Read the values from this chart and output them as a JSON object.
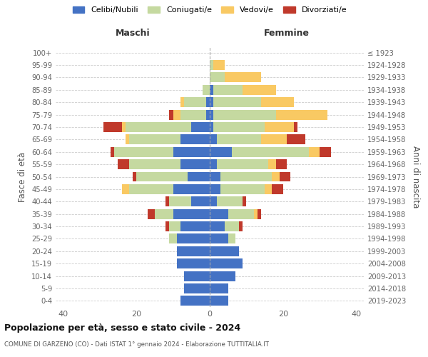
{
  "age_groups": [
    "0-4",
    "5-9",
    "10-14",
    "15-19",
    "20-24",
    "25-29",
    "30-34",
    "35-39",
    "40-44",
    "45-49",
    "50-54",
    "55-59",
    "60-64",
    "65-69",
    "70-74",
    "75-79",
    "80-84",
    "85-89",
    "90-94",
    "95-99",
    "100+"
  ],
  "birth_years": [
    "2019-2023",
    "2014-2018",
    "2009-2013",
    "2004-2008",
    "1999-2003",
    "1994-1998",
    "1989-1993",
    "1984-1988",
    "1979-1983",
    "1974-1978",
    "1969-1973",
    "1964-1968",
    "1959-1963",
    "1954-1958",
    "1949-1953",
    "1944-1948",
    "1939-1943",
    "1934-1938",
    "1929-1933",
    "1924-1928",
    "≤ 1923"
  ],
  "colors": {
    "celibe": "#4472c4",
    "coniugato": "#c5d9a0",
    "vedovo": "#f9c963",
    "divorziato": "#c0392b"
  },
  "maschi": {
    "celibe": [
      8,
      7,
      7,
      9,
      9,
      9,
      8,
      10,
      5,
      10,
      6,
      8,
      10,
      8,
      5,
      1,
      1,
      0,
      0,
      0,
      0
    ],
    "coniugato": [
      0,
      0,
      0,
      0,
      0,
      2,
      3,
      5,
      6,
      12,
      14,
      14,
      16,
      14,
      18,
      7,
      6,
      2,
      0,
      0,
      0
    ],
    "vedovo": [
      0,
      0,
      0,
      0,
      0,
      0,
      0,
      0,
      0,
      2,
      0,
      0,
      0,
      1,
      1,
      2,
      1,
      0,
      0,
      0,
      0
    ],
    "divorziato": [
      0,
      0,
      0,
      0,
      0,
      0,
      1,
      2,
      1,
      0,
      1,
      3,
      1,
      0,
      5,
      1,
      0,
      0,
      0,
      0,
      0
    ]
  },
  "femmine": {
    "nubile": [
      5,
      5,
      7,
      9,
      8,
      5,
      4,
      5,
      2,
      3,
      3,
      2,
      6,
      2,
      1,
      1,
      1,
      1,
      0,
      0,
      0
    ],
    "coniugata": [
      0,
      0,
      0,
      0,
      0,
      2,
      4,
      7,
      7,
      12,
      14,
      14,
      21,
      12,
      14,
      17,
      13,
      8,
      4,
      1,
      0
    ],
    "vedova": [
      0,
      0,
      0,
      0,
      0,
      0,
      0,
      1,
      0,
      2,
      2,
      2,
      3,
      7,
      8,
      14,
      9,
      9,
      10,
      3,
      0
    ],
    "divorziata": [
      0,
      0,
      0,
      0,
      0,
      0,
      1,
      1,
      1,
      3,
      3,
      3,
      3,
      5,
      1,
      0,
      0,
      0,
      0,
      0,
      0
    ]
  },
  "xlim": 42,
  "title1": "Popolazione per età, sesso e stato civile - 2024",
  "title2": "COMUNE DI GARZENO (CO) - Dati ISTAT 1° gennaio 2024 - Elaborazione TUTTITALIA.IT",
  "legend_labels": [
    "Celibi/Nubili",
    "Coniugati/e",
    "Vedovi/e",
    "Divorziati/e"
  ],
  "ylabel_left": "Fasce di età",
  "ylabel_right": "Anni di nascita",
  "xlabel_left": "Maschi",
  "xlabel_right": "Femmine"
}
